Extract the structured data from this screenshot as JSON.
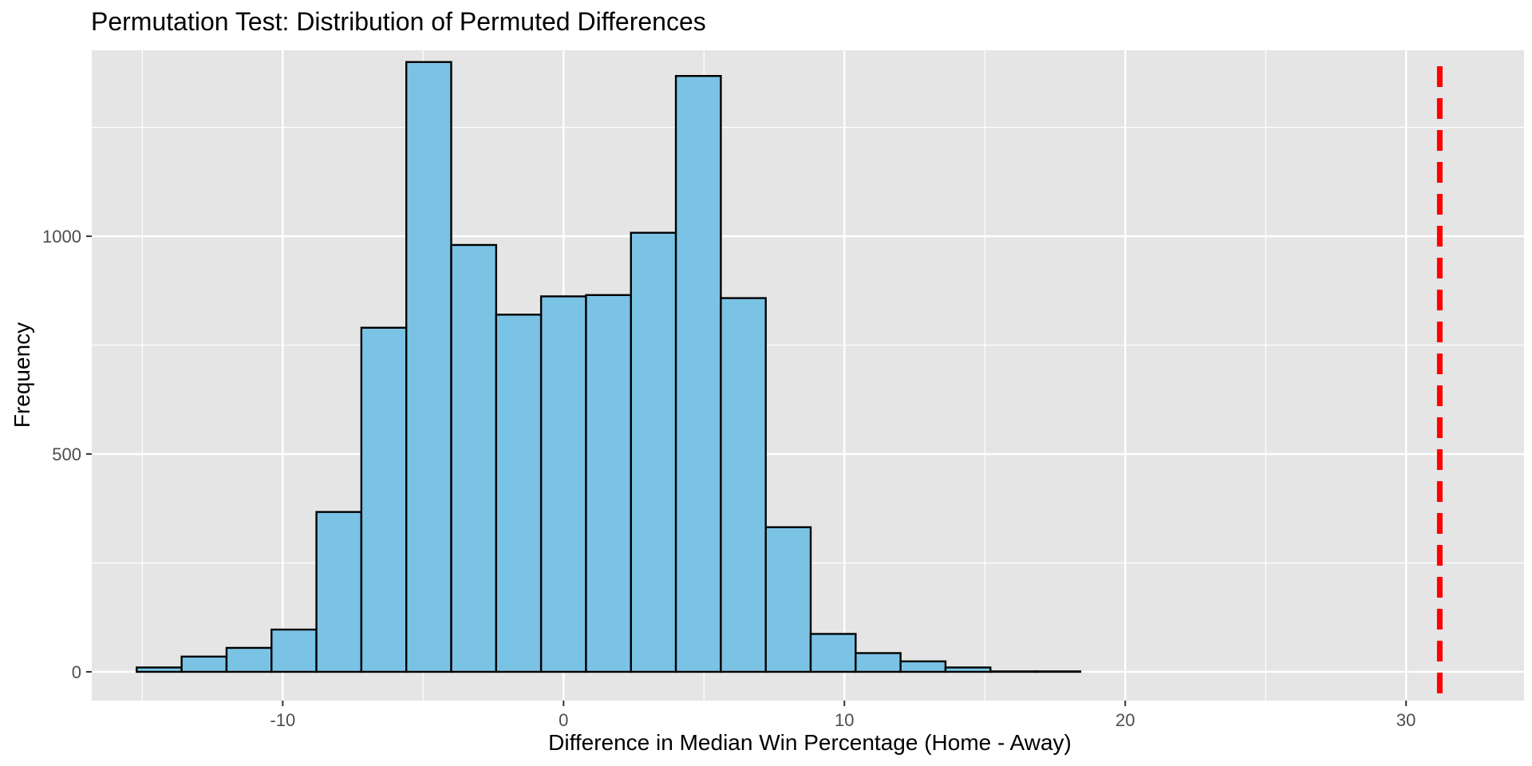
{
  "chart_data": {
    "type": "bar",
    "title": "Permutation Test: Distribution of Permuted Differences",
    "xlabel": "Difference in Median Win Percentage (Home  - Away)",
    "ylabel": "Frequency",
    "xlim": [
      -16.8,
      34.2
    ],
    "ylim": [
      -66,
      1427
    ],
    "x_ticks": [
      -10,
      0,
      10,
      20,
      30
    ],
    "x_tick_labels": [
      "-10",
      "0",
      "10",
      "20",
      "30"
    ],
    "y_ticks": [
      0,
      500,
      1000
    ],
    "y_tick_labels": [
      "0",
      "500",
      "1000"
    ],
    "grid": true,
    "bins": [
      {
        "x0": -15.2,
        "x1": -13.6,
        "count": 10
      },
      {
        "x0": -13.6,
        "x1": -12.0,
        "count": 35
      },
      {
        "x0": -12.0,
        "x1": -10.4,
        "count": 55
      },
      {
        "x0": -10.4,
        "x1": -8.8,
        "count": 97
      },
      {
        "x0": -8.8,
        "x1": -7.2,
        "count": 367
      },
      {
        "x0": -7.2,
        "x1": -5.6,
        "count": 790
      },
      {
        "x0": -5.6,
        "x1": -4.0,
        "count": 1400
      },
      {
        "x0": -4.0,
        "x1": -2.4,
        "count": 980
      },
      {
        "x0": -2.4,
        "x1": -0.8,
        "count": 820
      },
      {
        "x0": -0.8,
        "x1": 0.8,
        "count": 862
      },
      {
        "x0": 0.8,
        "x1": 2.4,
        "count": 865
      },
      {
        "x0": 2.4,
        "x1": 4.0,
        "count": 1008
      },
      {
        "x0": 4.0,
        "x1": 5.6,
        "count": 1368
      },
      {
        "x0": 5.6,
        "x1": 7.2,
        "count": 858
      },
      {
        "x0": 7.2,
        "x1": 8.8,
        "count": 332
      },
      {
        "x0": 8.8,
        "x1": 10.4,
        "count": 87
      },
      {
        "x0": 10.4,
        "x1": 12.0,
        "count": 43
      },
      {
        "x0": 12.0,
        "x1": 13.6,
        "count": 24
      },
      {
        "x0": 13.6,
        "x1": 15.2,
        "count": 10
      },
      {
        "x0": 15.2,
        "x1": 16.8,
        "count": 1
      },
      {
        "x0": 16.8,
        "x1": 18.4,
        "count": 1
      },
      {
        "x0": 18.4,
        "x1": 20.0,
        "count": 0
      },
      {
        "x0": 20.0,
        "x1": 21.6,
        "count": 0
      },
      {
        "x0": 21.6,
        "x1": 23.2,
        "count": 0
      },
      {
        "x0": 23.2,
        "x1": 24.8,
        "count": 0
      },
      {
        "x0": 24.8,
        "x1": 26.4,
        "count": 0
      },
      {
        "x0": 26.4,
        "x1": 28.0,
        "count": 0
      },
      {
        "x0": 28.0,
        "x1": 29.6,
        "count": 0
      },
      {
        "x0": 29.6,
        "x1": 31.2,
        "count": 0
      },
      {
        "x0": 31.2,
        "x1": 32.8,
        "count": 0
      }
    ],
    "observed_difference": 31.2,
    "colors": {
      "panel_background": "#e5e5e5",
      "grid": "#ffffff",
      "bar_fill": "#7bc3e5",
      "bar_stroke": "#000000",
      "observed_line": "#ff0000"
    }
  }
}
